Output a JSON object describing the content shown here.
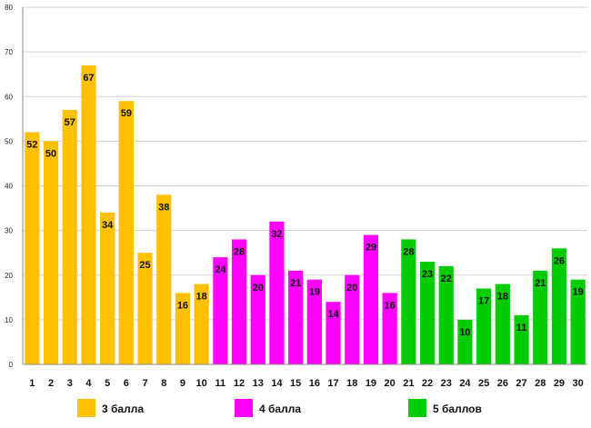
{
  "chart_data": {
    "type": "bar",
    "title": "",
    "xlabel": "",
    "ylabel": "",
    "ylim": [
      0,
      80
    ],
    "yticks": [
      "0",
      "10",
      "20",
      "30",
      "40",
      "50",
      "60",
      "70",
      "80"
    ],
    "grid": true,
    "legend_position": "bottom",
    "categories": [
      "1",
      "2",
      "3",
      "4",
      "5",
      "6",
      "7",
      "8",
      "9",
      "10",
      "11",
      "12",
      "13",
      "14",
      "15",
      "16",
      "17",
      "18",
      "19",
      "20",
      "21",
      "22",
      "23",
      "24",
      "25",
      "26",
      "27",
      "28",
      "29",
      "30"
    ],
    "values": [
      52,
      50,
      57,
      67,
      34,
      59,
      25,
      38,
      16,
      18,
      24,
      28,
      20,
      32,
      21,
      19,
      14,
      20,
      29,
      16,
      28,
      23,
      22,
      10,
      17,
      18,
      11,
      21,
      26,
      19
    ],
    "bar_groups": [
      0,
      0,
      0,
      0,
      0,
      0,
      0,
      0,
      0,
      0,
      1,
      1,
      1,
      1,
      1,
      1,
      1,
      1,
      1,
      1,
      2,
      2,
      2,
      2,
      2,
      2,
      2,
      2,
      2,
      2
    ],
    "series": [
      {
        "name": "3 балла",
        "color": "#ffc000"
      },
      {
        "name": "4 балла",
        "color": "#ff00ff"
      },
      {
        "name": "5 баллов",
        "color": "#00cc00"
      }
    ]
  }
}
